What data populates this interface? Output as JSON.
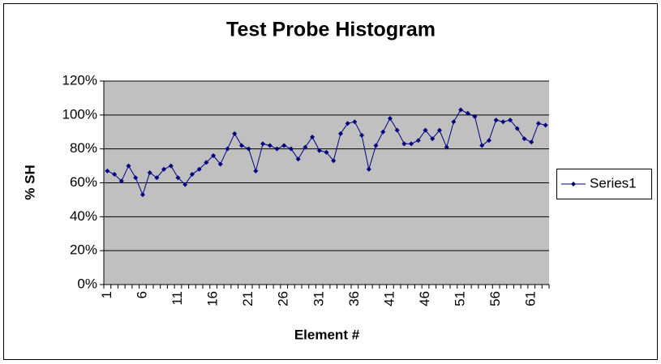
{
  "chart_data": {
    "type": "line",
    "title": "Test Probe Histogram",
    "x_label": "Element #",
    "y_label": "% SH",
    "categories": [
      1,
      null,
      null,
      null,
      null,
      6,
      null,
      null,
      null,
      null,
      11,
      null,
      null,
      null,
      null,
      16,
      null,
      null,
      null,
      null,
      21,
      null,
      null,
      null,
      null,
      26,
      null,
      null,
      null,
      null,
      31,
      null,
      null,
      null,
      null,
      36,
      null,
      null,
      null,
      null,
      41,
      null,
      null,
      null,
      null,
      46,
      null,
      null,
      null,
      null,
      51,
      null,
      null,
      null,
      null,
      56,
      null,
      null,
      null,
      null,
      61,
      null,
      null
    ],
    "series": [
      {
        "name": "Series1",
        "color": "#000080",
        "values": [
          67,
          65,
          61,
          70,
          63,
          53,
          66,
          63,
          68,
          70,
          63,
          59,
          65,
          68,
          72,
          76,
          71,
          80,
          89,
          82,
          80,
          67,
          83,
          82,
          80,
          82,
          80,
          74,
          81,
          87,
          79,
          78,
          73,
          89,
          95,
          96,
          88,
          68,
          82,
          90,
          98,
          91,
          83,
          83,
          85,
          91,
          86,
          91,
          81,
          96,
          103,
          101,
          99,
          82,
          85,
          97,
          96,
          97,
          92,
          86,
          84,
          95,
          94
        ]
      }
    ],
    "ylim": [
      0,
      120
    ],
    "yticks": [
      {
        "value": 0,
        "label": "0%"
      },
      {
        "value": 20,
        "label": "20%"
      },
      {
        "value": 40,
        "label": "40%"
      },
      {
        "value": 60,
        "label": "60%"
      },
      {
        "value": 80,
        "label": "80%"
      },
      {
        "value": 100,
        "label": "100%"
      },
      {
        "value": 120,
        "label": "120%"
      }
    ],
    "grid": true,
    "plot_background": "#c0c0c0",
    "legend": "right"
  }
}
